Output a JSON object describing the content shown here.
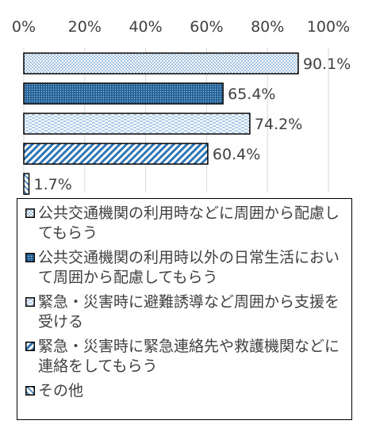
{
  "chart_data": {
    "type": "bar",
    "orientation": "horizontal",
    "categories": [
      "公共交通機関の利用時などに周囲から配慮してもらう",
      "公共交通機関の利用時以外の日常生活において周囲から配慮してもらう",
      "緊急・災害時に避難誘導など周囲から支援を受ける",
      "緊急・災害時に緊急連絡先や救護機関などに連絡をしてもらう",
      "その他"
    ],
    "values": [
      90.1,
      65.4,
      74.2,
      60.4,
      1.7
    ],
    "data_labels": [
      "90.1%",
      "65.4%",
      "74.2%",
      "60.4%",
      "1.7%"
    ],
    "x_ticks": [
      "0%",
      "20%",
      "40%",
      "60%",
      "80%",
      "100%"
    ],
    "xlim": [
      0,
      100
    ],
    "axis_position": "top",
    "grid": "vertical",
    "legend_position": "bottom",
    "colors": {
      "dotted_fill": "#2e75b6",
      "dense_fill": "#1f5f95",
      "dashed_fill": "#5b9bd5",
      "hatch_fill": "#2e75b6",
      "border": "#000000",
      "grid": "#d9d9d9",
      "text": "#404040"
    },
    "patterns": [
      "dots",
      "dense-dots",
      "dashes",
      "diagonal-stripes",
      "light-diagonal-stripes"
    ]
  }
}
